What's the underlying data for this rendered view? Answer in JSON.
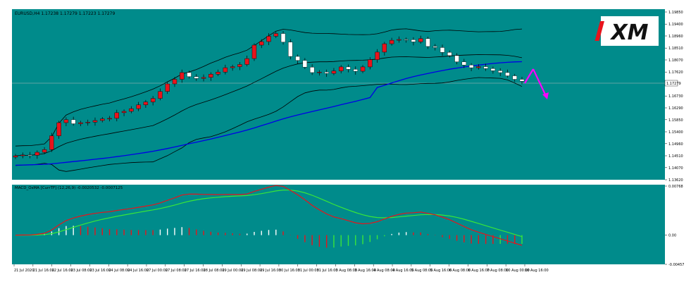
{
  "window": {
    "symbol_title": "EURUSD,H4  1.17238 1.17279 1.17223 1.17279",
    "current_price_label": "1.17279"
  },
  "logo": {
    "text": "XM"
  },
  "colors": {
    "background": "#008b8b",
    "bull_candle": "#e8141c",
    "bear_candle": "#ffffff",
    "bollinger": "#000000",
    "ma": "#0000e6",
    "macd_signal": "#39e639",
    "macd_line": "#e8141c",
    "hist_rising_neg": "#39e639",
    "hist_rising": "#ffffff",
    "hist_falling": "#e8141c",
    "arrow": "#ff00ff",
    "axis_text": "#000000"
  },
  "chart_data": [
    {
      "type": "candlestick",
      "title": "EURUSD,H4  1.17238 1.17279 1.17223 1.17279",
      "ylim": [
        1.1362,
        1.1985
      ],
      "y_ticks": [
        "1.19850",
        "1.19400",
        "1.18960",
        "1.18510",
        "1.18070",
        "1.17620",
        "1.16730",
        "1.16290",
        "1.15850",
        "1.15400",
        "1.14960",
        "1.14510",
        "1.14070",
        "1.13620"
      ],
      "x_tick_labels": [
        "21 Jul 2020",
        "21 Jul 16:00",
        "22 Jul 16:00",
        "23 Jul 08:00",
        "23 Jul 16:00",
        "24 Jul 08:00",
        "24 Jul 16:00",
        "27 Jul 00:00",
        "27 Jul 08:00",
        "27 Jul 16:00",
        "28 Jul 08:00",
        "29 Jul 00:00",
        "29 Jul 08:00",
        "29 Jul 16:00",
        "30 Jul 16:00",
        "31 Jul 00:00",
        "31 Jul 16:00",
        "3 Aug 08:00",
        "3 Aug 16:00",
        "4 Aug 08:00",
        "4 Aug 16:00",
        "5 Aug 08:00",
        "5 Aug 16:00",
        "6 Aug 08:00",
        "6 Aug 16:00",
        "7 Aug 08:00",
        "10 Aug 00:00",
        "10 Aug 16:00"
      ],
      "close": [
        1.1451,
        1.1454,
        1.1453,
        1.1464,
        1.1474,
        1.1525,
        1.1574,
        1.1585,
        1.157,
        1.1574,
        1.1576,
        1.1582,
        1.1588,
        1.159,
        1.1611,
        1.1616,
        1.1626,
        1.164,
        1.1651,
        1.1664,
        1.169,
        1.1718,
        1.1735,
        1.176,
        1.1745,
        1.1738,
        1.1742,
        1.1754,
        1.1762,
        1.1778,
        1.1782,
        1.179,
        1.1812,
        1.1862,
        1.1875,
        1.1895,
        1.1905,
        1.1873,
        1.182,
        1.1805,
        1.178,
        1.176,
        1.1762,
        1.1757,
        1.1766,
        1.1781,
        1.1772,
        1.1765,
        1.1781,
        1.1808,
        1.1836,
        1.1867,
        1.188,
        1.1883,
        1.1882,
        1.1874,
        1.1886,
        1.1857,
        1.1853,
        1.1835,
        1.1823,
        1.18,
        1.1788,
        1.1778,
        1.1782,
        1.1775,
        1.1767,
        1.176,
        1.1748,
        1.1735,
        1.1728
      ]
    },
    {
      "type": "histogram_line",
      "title": "MACD_OsMA [CurrTF] (12,26,9) -0.0020532 -0.0007125",
      "ylim": [
        -0.00457,
        0.00768
      ],
      "y_ticks": [
        "0.00768",
        "0.00",
        "-0.00457"
      ],
      "series": [
        {
          "name": "MACD",
          "color": "red"
        },
        {
          "name": "Signal",
          "color": "green"
        },
        {
          "name": "OsMA",
          "style": "histogram"
        }
      ]
    }
  ]
}
